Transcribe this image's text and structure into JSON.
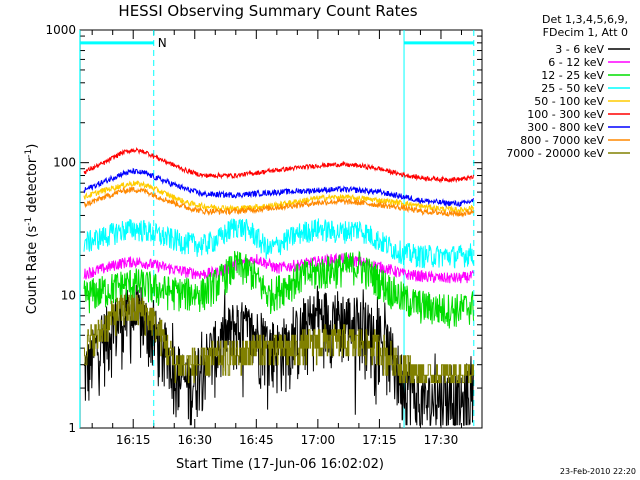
{
  "chart_data": {
    "type": "line",
    "title": "HESSI Observing Summary Count Rates",
    "xlabel": "Start Time (17-Jun-06 16:02:02)",
    "ylabel_main": "Count Rate (s",
    "ylabel_sup1": "-1",
    "ylabel_mid": " detector",
    "ylabel_sup2": "-1",
    "ylabel_end": ")",
    "y_scale": "log",
    "ylim": [
      1,
      1000
    ],
    "xlim": [
      "16:02:02",
      "17:40"
    ],
    "x_ticks": [
      "16:15",
      "16:30",
      "16:45",
      "17:00",
      "17:15",
      "17:30"
    ],
    "y_ticks": [
      "1",
      "10",
      "100",
      "1000"
    ],
    "legend_placement": "right",
    "legend_header": [
      "Det 1,3,4,5,6,9,",
      "FDecim 1, Att 0"
    ],
    "timestamp": "23-Feb-2010 22:20",
    "night_bars": [
      {
        "label": "N",
        "start": "16:02",
        "end": "16:20",
        "level": 800
      },
      {
        "label": "",
        "start": "17:21",
        "end": "17:38",
        "level": 800
      }
    ],
    "dashed_markers": [
      "16:20",
      "17:38"
    ],
    "solid_markers": [
      "16:02",
      "17:21"
    ],
    "series": [
      {
        "name": "3 - 6 keV",
        "color": "#000000",
        "bursty": true,
        "noise": 0.6,
        "times": [
          "16:03",
          "16:06",
          "16:10",
          "16:13",
          "16:16",
          "16:19",
          "16:22",
          "16:25",
          "16:29",
          "16:31",
          "16:35",
          "16:40",
          "16:45",
          "16:50",
          "16:55",
          "17:00",
          "17:05",
          "17:10",
          "17:15",
          "17:18",
          "17:20",
          "17:22",
          "17:25",
          "17:30",
          "17:35",
          "17:38"
        ],
        "values": [
          2.5,
          4,
          6,
          7,
          7,
          6,
          4,
          3,
          2,
          3,
          4,
          6,
          5,
          4,
          5,
          7,
          7,
          6,
          5,
          3.5,
          2.5,
          2.2,
          1.5,
          1.8,
          1.5,
          2
        ]
      },
      {
        "name": "6 - 12 keV",
        "color": "#ff00ff",
        "noise": 0.1,
        "times": [
          "16:03",
          "16:08",
          "16:12",
          "16:15",
          "16:18",
          "16:22",
          "16:28",
          "16:32",
          "16:36",
          "16:40",
          "16:45",
          "16:50",
          "16:55",
          "17:00",
          "17:05",
          "17:10",
          "17:15",
          "17:18",
          "17:21",
          "17:25",
          "17:30",
          "17:35",
          "17:38"
        ],
        "values": [
          14.5,
          16,
          17.5,
          18,
          17.5,
          16.5,
          15,
          14.5,
          15,
          17,
          19,
          16,
          17,
          18,
          19,
          18,
          16.5,
          15.5,
          14.5,
          14,
          13.5,
          13.5,
          14
        ]
      },
      {
        "name": "12 - 25 keV",
        "color": "#00dd00",
        "noise": 0.3,
        "times": [
          "16:03",
          "16:08",
          "16:12",
          "16:15",
          "16:18",
          "16:22",
          "16:28",
          "16:32",
          "16:36",
          "16:40",
          "16:44",
          "16:48",
          "16:52",
          "16:56",
          "17:00",
          "17:05",
          "17:10",
          "17:15",
          "17:18",
          "17:21",
          "17:25",
          "17:30",
          "17:35",
          "17:38"
        ],
        "values": [
          10,
          11,
          12,
          12.5,
          12,
          11,
          10.5,
          10.5,
          13,
          17,
          15,
          10,
          12,
          14,
          15,
          16,
          17,
          13,
          11,
          9.5,
          8.5,
          8,
          8,
          8.5
        ]
      },
      {
        "name": "25 - 50 keV",
        "color": "#00ffff",
        "noise": 0.2,
        "times": [
          "16:03",
          "16:08",
          "16:12",
          "16:15",
          "16:18",
          "16:22",
          "16:28",
          "16:32",
          "16:36",
          "16:40",
          "16:44",
          "16:48",
          "16:52",
          "16:56",
          "17:00",
          "17:05",
          "17:10",
          "17:15",
          "17:18",
          "17:21",
          "17:25",
          "17:30",
          "17:35",
          "17:38"
        ],
        "values": [
          25,
          28,
          31,
          32,
          31,
          28,
          25,
          24,
          27,
          34,
          30,
          22,
          26,
          30,
          32,
          30,
          32,
          26,
          23,
          21,
          20,
          20,
          20,
          21
        ]
      },
      {
        "name": "50 - 100 keV",
        "color": "#ffcc00",
        "noise": 0.05,
        "times": [
          "16:03",
          "16:08",
          "16:12",
          "16:15",
          "16:18",
          "16:22",
          "16:28",
          "16:32",
          "16:40",
          "16:50",
          "17:00",
          "17:05",
          "17:10",
          "17:15",
          "17:20",
          "17:25",
          "17:30",
          "17:35",
          "17:38"
        ],
        "values": [
          55,
          62,
          67,
          70,
          68,
          60,
          50,
          47,
          45,
          48,
          54,
          55,
          54,
          52,
          50,
          47,
          45,
          44,
          46
        ]
      },
      {
        "name": "100 - 300 keV",
        "color": "#ff0000",
        "noise": 0.04,
        "times": [
          "16:03",
          "16:08",
          "16:12",
          "16:15",
          "16:18",
          "16:22",
          "16:28",
          "16:32",
          "16:40",
          "16:50",
          "17:00",
          "17:05",
          "17:10",
          "17:15",
          "17:20",
          "17:25",
          "17:30",
          "17:35",
          "17:38"
        ],
        "values": [
          85,
          100,
          118,
          125,
          120,
          105,
          87,
          80,
          80,
          88,
          95,
          97,
          95,
          90,
          82,
          77,
          75,
          75,
          78
        ]
      },
      {
        "name": "300 - 800 keV",
        "color": "#0000ff",
        "noise": 0.05,
        "times": [
          "16:03",
          "16:08",
          "16:12",
          "16:15",
          "16:18",
          "16:22",
          "16:28",
          "16:32",
          "16:40",
          "16:50",
          "17:00",
          "17:05",
          "17:10",
          "17:15",
          "17:20",
          "17:25",
          "17:30",
          "17:35",
          "17:38"
        ],
        "values": [
          62,
          72,
          82,
          86,
          83,
          74,
          63,
          58,
          57,
          60,
          62,
          63,
          62,
          60,
          56,
          52,
          50,
          49,
          52
        ]
      },
      {
        "name": "800 - 7000 keV",
        "color": "#ff8800",
        "noise": 0.05,
        "times": [
          "16:03",
          "16:08",
          "16:12",
          "16:15",
          "16:18",
          "16:22",
          "16:28",
          "16:32",
          "16:40",
          "16:50",
          "17:00",
          "17:05",
          "17:10",
          "17:15",
          "17:20",
          "17:25",
          "17:30",
          "17:35",
          "17:38"
        ],
        "values": [
          48,
          55,
          61,
          63,
          61,
          54,
          46,
          43,
          43,
          46,
          50,
          51,
          50,
          48,
          46,
          43,
          42,
          41,
          43
        ]
      },
      {
        "name": "7000 - 20000 keV",
        "color": "#808000",
        "stepped": true,
        "noise": 0.3,
        "times": [
          "16:03",
          "16:06",
          "16:10",
          "16:13",
          "16:16",
          "16:19",
          "16:22",
          "16:25",
          "16:30",
          "16:35",
          "16:40",
          "16:45",
          "16:50",
          "16:55",
          "17:00",
          "17:05",
          "17:10",
          "17:15",
          "17:20",
          "17:25",
          "17:30",
          "17:35",
          "17:38"
        ],
        "values": [
          4,
          5,
          7,
          8,
          8,
          7,
          5,
          3,
          3,
          3.5,
          3.5,
          4,
          4,
          4,
          4.5,
          4.5,
          4.5,
          4,
          3,
          2.5,
          2.5,
          2.5,
          2.5
        ]
      }
    ]
  }
}
